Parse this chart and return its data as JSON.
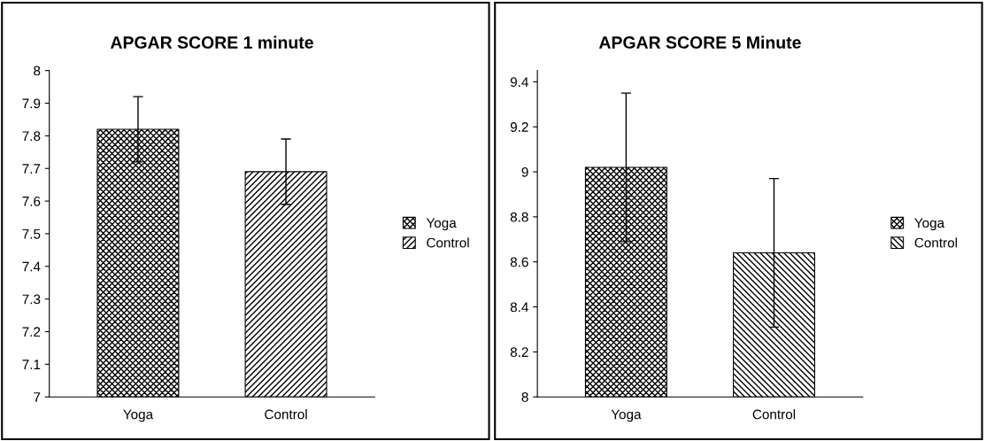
{
  "chart_data": [
    {
      "type": "bar",
      "title": "APGAR SCORE 1 minute",
      "categories": [
        "Yoga",
        "Control"
      ],
      "series": [
        {
          "name": "Yoga",
          "color": "#000000",
          "values": [
            7.82,
            null
          ],
          "errors": [
            0.1,
            null
          ]
        },
        {
          "name": "Control",
          "color": "#000000",
          "values": [
            null,
            7.69
          ],
          "errors": [
            null,
            0.1
          ]
        }
      ],
      "ylim": [
        7,
        8
      ],
      "yticks": [
        7,
        7.1,
        7.2,
        7.3,
        7.4,
        7.5,
        7.6,
        7.7,
        7.8,
        7.9,
        8
      ],
      "grid": false,
      "legend": "right"
    },
    {
      "type": "bar",
      "title": "APGAR SCORE 5 Minute",
      "categories": [
        "Yoga",
        "Control"
      ],
      "series": [
        {
          "name": "Yoga",
          "color": "#000000",
          "values": [
            9.02,
            null
          ],
          "errors": [
            0.33,
            null
          ]
        },
        {
          "name": "Control",
          "color": "#000000",
          "values": [
            null,
            8.64
          ],
          "errors": [
            null,
            0.33
          ]
        }
      ],
      "ylim": [
        8,
        9.45
      ],
      "yticks": [
        8,
        8.2,
        8.4,
        8.6,
        8.8,
        9,
        9.2,
        9.4
      ],
      "grid": false,
      "legend": "right"
    }
  ]
}
